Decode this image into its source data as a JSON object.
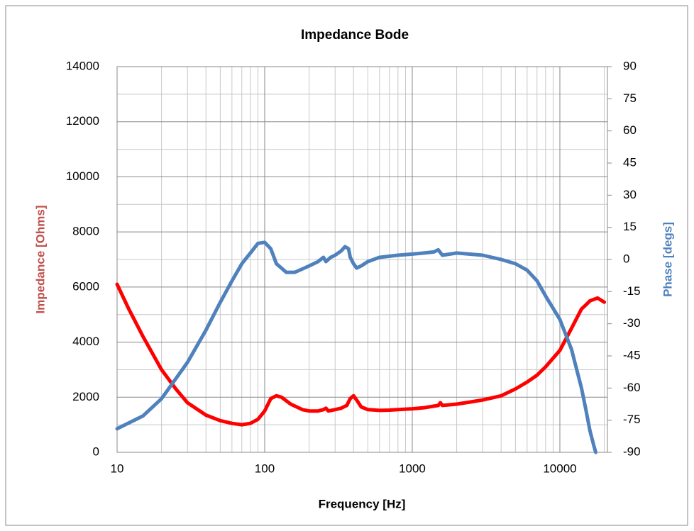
{
  "chart_data": {
    "type": "line",
    "title": "Impedance Bode",
    "x_label": "Frequency [Hz]",
    "y_label": "Impedance [Ohms]",
    "y2_label": "Phase  [degs]",
    "xscale": "log",
    "grid": true,
    "xlim": [
      10,
      21000
    ],
    "xticks": [
      10,
      100,
      1000,
      10000
    ],
    "ylim": [
      0,
      14000
    ],
    "yticks": [
      0,
      2000,
      4000,
      6000,
      8000,
      10000,
      12000,
      14000
    ],
    "y2lim": [
      -90,
      90
    ],
    "y2ticks": [
      -90,
      -75,
      -60,
      -45,
      -30,
      -15,
      0,
      15,
      30,
      45,
      60,
      75,
      90
    ],
    "series": [
      {
        "name": "Impedance",
        "color": "#ff0000",
        "axis": "y",
        "x": [
          10,
          12,
          15,
          20,
          25,
          30,
          40,
          50,
          60,
          70,
          80,
          90,
          100,
          110,
          120,
          130,
          150,
          180,
          200,
          230,
          250,
          260,
          270,
          300,
          330,
          360,
          380,
          400,
          420,
          450,
          500,
          600,
          700,
          800,
          1000,
          1200,
          1500,
          1550,
          1600,
          2000,
          2500,
          3000,
          4000,
          5000,
          6000,
          7000,
          8000,
          10000,
          12000,
          14000,
          15000,
          16000,
          18000,
          20000
        ],
        "values": [
          6100,
          5200,
          4200,
          3000,
          2300,
          1800,
          1350,
          1150,
          1050,
          1000,
          1050,
          1200,
          1500,
          1950,
          2050,
          2000,
          1750,
          1550,
          1500,
          1500,
          1550,
          1600,
          1500,
          1550,
          1600,
          1700,
          1950,
          2050,
          1900,
          1650,
          1550,
          1520,
          1530,
          1550,
          1580,
          1620,
          1700,
          1800,
          1700,
          1750,
          1830,
          1900,
          2050,
          2300,
          2550,
          2800,
          3100,
          3700,
          4500,
          5200,
          5350,
          5500,
          5600,
          5450
        ]
      },
      {
        "name": "Phase",
        "color": "#4f81bd",
        "axis": "y2",
        "x": [
          10,
          15,
          20,
          30,
          40,
          50,
          60,
          70,
          80,
          90,
          100,
          110,
          120,
          140,
          160,
          200,
          230,
          250,
          260,
          280,
          300,
          330,
          350,
          370,
          380,
          400,
          420,
          450,
          500,
          600,
          800,
          1000,
          1200,
          1400,
          1500,
          1600,
          2000,
          3000,
          4000,
          5000,
          6000,
          7000,
          8000,
          10000,
          12000,
          14000,
          15000,
          16000,
          17000,
          17500
        ],
        "values": [
          -79,
          -73,
          -65,
          -48,
          -33,
          -20,
          -10,
          -2,
          3,
          7.5,
          8,
          5,
          -2,
          -6,
          -6,
          -3,
          -1,
          1,
          -1,
          1,
          2,
          4,
          6,
          5,
          1,
          -2,
          -4,
          -3,
          -1,
          1,
          2,
          2.5,
          3,
          3.5,
          4.5,
          2,
          3,
          2,
          0,
          -2,
          -5,
          -10,
          -17,
          -28,
          -42,
          -60,
          -70,
          -80,
          -87,
          -90
        ]
      }
    ]
  }
}
